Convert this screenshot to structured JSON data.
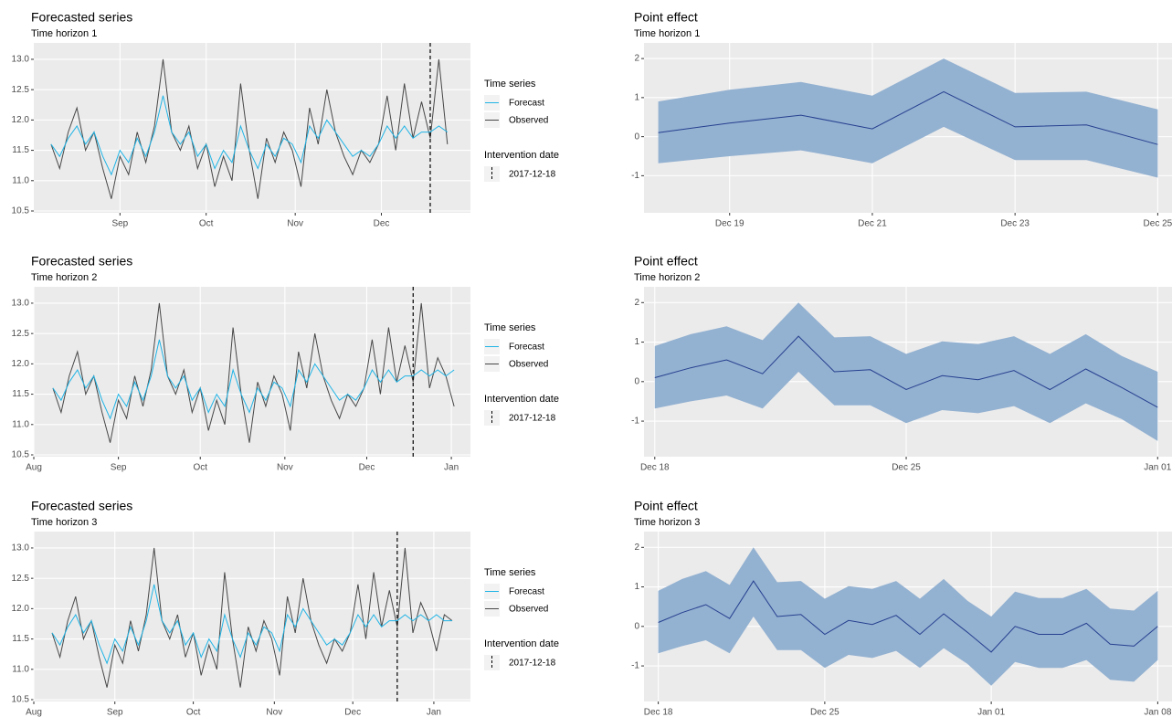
{
  "chart_data": [
    {
      "type": "line",
      "title": "Forecasted series",
      "subtitle": "Time horizon 1",
      "x": [
        7,
        10,
        13,
        16,
        19,
        22,
        25,
        28,
        31,
        34,
        37,
        40,
        43,
        46,
        49,
        52,
        55,
        58,
        61,
        64,
        67,
        70,
        73,
        76,
        79,
        82,
        85,
        88,
        91,
        94,
        97,
        100,
        103,
        106,
        109,
        112,
        115,
        118,
        121,
        124,
        127,
        130,
        133,
        136,
        139,
        142,
        145
      ],
      "series": [
        {
          "name": "Forecast",
          "color": "#1fb4e6",
          "values": [
            11.6,
            11.4,
            11.7,
            11.9,
            11.6,
            11.8,
            11.4,
            11.1,
            11.5,
            11.3,
            11.7,
            11.4,
            11.8,
            12.4,
            11.8,
            11.6,
            11.8,
            11.4,
            11.6,
            11.2,
            11.5,
            11.3,
            11.9,
            11.5,
            11.2,
            11.6,
            11.4,
            11.7,
            11.6,
            11.3,
            11.9,
            11.7,
            12.0,
            11.8,
            11.6,
            11.4,
            11.5,
            11.4,
            11.6,
            11.9,
            11.7,
            11.9,
            11.7,
            11.8,
            11.8,
            11.9,
            11.8
          ]
        },
        {
          "name": "Observed",
          "color": "#474747",
          "values": [
            11.6,
            11.2,
            11.8,
            12.2,
            11.5,
            11.8,
            11.2,
            10.7,
            11.4,
            11.1,
            11.8,
            11.3,
            11.9,
            13.0,
            11.8,
            11.5,
            11.9,
            11.2,
            11.6,
            10.9,
            11.4,
            11.0,
            12.6,
            11.5,
            10.7,
            11.7,
            11.3,
            11.8,
            11.5,
            10.9,
            12.2,
            11.6,
            12.5,
            11.8,
            11.4,
            11.1,
            11.5,
            11.3,
            11.6,
            12.4,
            11.5,
            12.6,
            11.7,
            12.3,
            11.7,
            13.0,
            11.6
          ]
        }
      ],
      "xlim": [
        1,
        153
      ],
      "xticks": [
        {
          "value": 31,
          "label": "Sep"
        },
        {
          "value": 61,
          "label": "Oct"
        },
        {
          "value": 92,
          "label": "Nov"
        },
        {
          "value": 122,
          "label": "Dec"
        }
      ],
      "ylim": [
        10.47,
        13.27
      ],
      "yticks": [
        10.5,
        {
          "value": 11,
          "label": "11.0"
        },
        11.5,
        {
          "value": 12,
          "label": "12.0"
        },
        12.5,
        {
          "value": 13,
          "label": "13.0"
        }
      ],
      "grid": true,
      "legend_title": "Time series",
      "intervention": {
        "title": "Intervention date",
        "x": 139,
        "label": "2017-12-18"
      }
    },
    {
      "type": "ribbon",
      "title": "Point effect",
      "subtitle": "Time horizon 1",
      "x": [
        139,
        140,
        141,
        142,
        143,
        144,
        145,
        146
      ],
      "values": [
        0.1,
        0.35,
        0.55,
        0.2,
        1.15,
        0.25,
        0.3,
        -0.2
      ],
      "lower": [
        -0.68,
        -0.5,
        -0.35,
        -0.68,
        0.25,
        -0.6,
        -0.6,
        -1.05
      ],
      "upper": [
        0.9,
        1.2,
        1.4,
        1.05,
        2.0,
        1.12,
        1.15,
        0.7
      ],
      "color": "#26408f",
      "band_color": "#93b1d1",
      "xlim": [
        138.8,
        146.2
      ],
      "xticks": [
        {
          "value": 140,
          "label": "Dec 19"
        },
        {
          "value": 142,
          "label": "Dec 21"
        },
        {
          "value": 144,
          "label": "Dec 23"
        },
        {
          "value": 146,
          "label": "Dec 25"
        }
      ],
      "ylim": [
        -1.95,
        2.4
      ],
      "yticks": [
        -1,
        0,
        1,
        2
      ],
      "grid": true
    },
    {
      "type": "line",
      "title": "Forecasted series",
      "subtitle": "Time horizon 2",
      "x": [
        7,
        10,
        13,
        16,
        19,
        22,
        25,
        28,
        31,
        34,
        37,
        40,
        43,
        46,
        49,
        52,
        55,
        58,
        61,
        64,
        67,
        70,
        73,
        76,
        79,
        82,
        85,
        88,
        91,
        94,
        97,
        100,
        103,
        106,
        109,
        112,
        115,
        118,
        121,
        124,
        127,
        130,
        133,
        136,
        139,
        142,
        145,
        148,
        151,
        154
      ],
      "series": [
        {
          "name": "Forecast",
          "color": "#1fb4e6",
          "values": [
            11.6,
            11.4,
            11.7,
            11.9,
            11.6,
            11.8,
            11.4,
            11.1,
            11.5,
            11.3,
            11.7,
            11.4,
            11.8,
            12.4,
            11.8,
            11.6,
            11.8,
            11.4,
            11.6,
            11.2,
            11.5,
            11.3,
            11.9,
            11.5,
            11.2,
            11.6,
            11.4,
            11.7,
            11.6,
            11.3,
            11.9,
            11.7,
            12.0,
            11.8,
            11.6,
            11.4,
            11.5,
            11.4,
            11.6,
            11.9,
            11.7,
            11.9,
            11.7,
            11.8,
            11.8,
            11.9,
            11.8,
            11.9,
            11.8,
            11.9
          ]
        },
        {
          "name": "Observed",
          "color": "#474747",
          "values": [
            11.6,
            11.2,
            11.8,
            12.2,
            11.5,
            11.8,
            11.2,
            10.7,
            11.4,
            11.1,
            11.8,
            11.3,
            11.9,
            13.0,
            11.8,
            11.5,
            11.9,
            11.2,
            11.6,
            10.9,
            11.4,
            11.0,
            12.6,
            11.5,
            10.7,
            11.7,
            11.3,
            11.8,
            11.5,
            10.9,
            12.2,
            11.6,
            12.5,
            11.8,
            11.4,
            11.1,
            11.5,
            11.3,
            11.6,
            12.4,
            11.5,
            12.6,
            11.7,
            12.3,
            11.7,
            13.0,
            11.6,
            12.1,
            11.8,
            11.3
          ]
        }
      ],
      "xlim": [
        0,
        160
      ],
      "xticks": [
        {
          "value": 0,
          "label": "Aug"
        },
        {
          "value": 31,
          "label": "Sep"
        },
        {
          "value": 61,
          "label": "Oct"
        },
        {
          "value": 92,
          "label": "Nov"
        },
        {
          "value": 122,
          "label": "Dec"
        },
        {
          "value": 153,
          "label": "Jan"
        }
      ],
      "ylim": [
        10.47,
        13.27
      ],
      "yticks": [
        10.5,
        {
          "value": 11,
          "label": "11.0"
        },
        11.5,
        {
          "value": 12,
          "label": "12.0"
        },
        12.5,
        {
          "value": 13,
          "label": "13.0"
        }
      ],
      "grid": true,
      "legend_title": "Time series",
      "intervention": {
        "title": "Intervention date",
        "x": 139,
        "label": "2017-12-18"
      }
    },
    {
      "type": "ribbon",
      "title": "Point effect",
      "subtitle": "Time horizon 2",
      "x": [
        139,
        140,
        141,
        142,
        143,
        144,
        145,
        146,
        147,
        148,
        149,
        150,
        151,
        152,
        153
      ],
      "values": [
        0.1,
        0.35,
        0.55,
        0.2,
        1.15,
        0.25,
        0.3,
        -0.2,
        0.15,
        0.05,
        0.28,
        -0.2,
        0.32,
        -0.15,
        -0.65
      ],
      "lower": [
        -0.68,
        -0.5,
        -0.35,
        -0.68,
        0.25,
        -0.6,
        -0.6,
        -1.05,
        -0.72,
        -0.8,
        -0.62,
        -1.05,
        -0.55,
        -0.95,
        -1.5
      ],
      "upper": [
        0.9,
        1.2,
        1.4,
        1.05,
        2.0,
        1.12,
        1.15,
        0.7,
        1.02,
        0.95,
        1.15,
        0.7,
        1.2,
        0.65,
        0.25
      ],
      "color": "#26408f",
      "band_color": "#93b1d1",
      "xlim": [
        138.7,
        153.4
      ],
      "xticks": [
        {
          "value": 139,
          "label": "Dec 18"
        },
        {
          "value": 146,
          "label": "Dec 25"
        },
        {
          "value": 153,
          "label": "Jan 01"
        }
      ],
      "ylim": [
        -1.9,
        2.4
      ],
      "yticks": [
        -1,
        0,
        1,
        2
      ],
      "grid": true
    },
    {
      "type": "line",
      "title": "Forecasted series",
      "subtitle": "Time horizon 3",
      "x": [
        7,
        10,
        13,
        16,
        19,
        22,
        25,
        28,
        31,
        34,
        37,
        40,
        43,
        46,
        49,
        52,
        55,
        58,
        61,
        64,
        67,
        70,
        73,
        76,
        79,
        82,
        85,
        88,
        91,
        94,
        97,
        100,
        103,
        106,
        109,
        112,
        115,
        118,
        121,
        124,
        127,
        130,
        133,
        136,
        139,
        142,
        145,
        148,
        151,
        154,
        157,
        160
      ],
      "series": [
        {
          "name": "Forecast",
          "color": "#1fb4e6",
          "values": [
            11.6,
            11.4,
            11.7,
            11.9,
            11.6,
            11.8,
            11.4,
            11.1,
            11.5,
            11.3,
            11.7,
            11.4,
            11.8,
            12.4,
            11.8,
            11.6,
            11.8,
            11.4,
            11.6,
            11.2,
            11.5,
            11.3,
            11.9,
            11.5,
            11.2,
            11.6,
            11.4,
            11.7,
            11.6,
            11.3,
            11.9,
            11.7,
            12.0,
            11.8,
            11.6,
            11.4,
            11.5,
            11.4,
            11.6,
            11.9,
            11.7,
            11.9,
            11.7,
            11.8,
            11.8,
            11.9,
            11.8,
            11.9,
            11.8,
            11.9,
            11.8,
            11.8
          ]
        },
        {
          "name": "Observed",
          "color": "#474747",
          "values": [
            11.6,
            11.2,
            11.8,
            12.2,
            11.5,
            11.8,
            11.2,
            10.7,
            11.4,
            11.1,
            11.8,
            11.3,
            11.9,
            13.0,
            11.8,
            11.5,
            11.9,
            11.2,
            11.6,
            10.9,
            11.4,
            11.0,
            12.6,
            11.5,
            10.7,
            11.7,
            11.3,
            11.8,
            11.5,
            10.9,
            12.2,
            11.6,
            12.5,
            11.8,
            11.4,
            11.1,
            11.5,
            11.3,
            11.6,
            12.4,
            11.5,
            12.6,
            11.7,
            12.3,
            11.7,
            13.0,
            11.6,
            12.1,
            11.8,
            11.3,
            11.9,
            11.8
          ]
        }
      ],
      "xlim": [
        0,
        167
      ],
      "xticks": [
        {
          "value": 0,
          "label": "Aug"
        },
        {
          "value": 31,
          "label": "Sep"
        },
        {
          "value": 61,
          "label": "Oct"
        },
        {
          "value": 92,
          "label": "Nov"
        },
        {
          "value": 122,
          "label": "Dec"
        },
        {
          "value": 153,
          "label": "Jan"
        }
      ],
      "ylim": [
        10.47,
        13.27
      ],
      "yticks": [
        10.5,
        {
          "value": 11,
          "label": "11.0"
        },
        11.5,
        {
          "value": 12,
          "label": "12.0"
        },
        12.5,
        {
          "value": 13,
          "label": "13.0"
        }
      ],
      "grid": true,
      "legend_title": "Time series",
      "intervention": {
        "title": "Intervention date",
        "x": 139,
        "label": "2017-12-18"
      }
    },
    {
      "type": "ribbon",
      "title": "Point effect",
      "subtitle": "Time horizon 3",
      "x": [
        139,
        140,
        141,
        142,
        143,
        144,
        145,
        146,
        147,
        148,
        149,
        150,
        151,
        152,
        153,
        154,
        155,
        156,
        157,
        158,
        159,
        160
      ],
      "values": [
        0.1,
        0.35,
        0.55,
        0.2,
        1.15,
        0.25,
        0.3,
        -0.2,
        0.15,
        0.05,
        0.28,
        -0.2,
        0.32,
        -0.15,
        -0.65,
        0.0,
        -0.2,
        -0.2,
        0.08,
        -0.45,
        -0.5,
        0.0
      ],
      "lower": [
        -0.68,
        -0.5,
        -0.35,
        -0.68,
        0.25,
        -0.6,
        -0.6,
        -1.05,
        -0.72,
        -0.8,
        -0.62,
        -1.05,
        -0.55,
        -0.95,
        -1.5,
        -0.9,
        -1.05,
        -1.05,
        -0.85,
        -1.35,
        -1.4,
        -0.85
      ],
      "upper": [
        0.9,
        1.2,
        1.4,
        1.05,
        2.0,
        1.12,
        1.15,
        0.7,
        1.02,
        0.95,
        1.15,
        0.7,
        1.2,
        0.65,
        0.25,
        0.88,
        0.72,
        0.72,
        0.95,
        0.45,
        0.4,
        0.9
      ],
      "color": "#26408f",
      "band_color": "#93b1d1",
      "xlim": [
        138.4,
        160.6
      ],
      "xticks": [
        {
          "value": 139,
          "label": "Dec 18"
        },
        {
          "value": 146,
          "label": "Dec 25"
        },
        {
          "value": 153,
          "label": "Jan 01"
        },
        {
          "value": 160,
          "label": "Jan 08"
        }
      ],
      "ylim": [
        -1.9,
        2.4
      ],
      "yticks": [
        -1,
        0,
        1,
        2
      ],
      "grid": true
    }
  ]
}
